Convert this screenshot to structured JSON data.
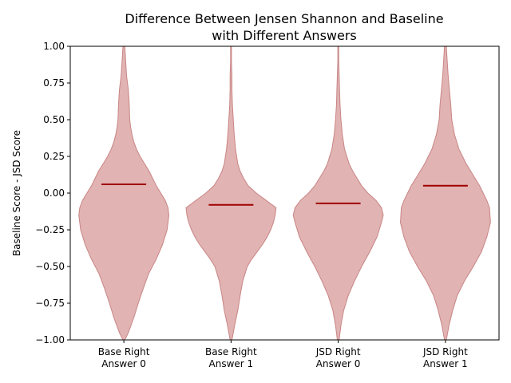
{
  "chart_data": {
    "type": "violin",
    "title_lines": [
      "Difference Between Jensen Shannon and Baseline",
      "with Different Answers"
    ],
    "xlabel": "",
    "ylabel": "Baseline Score - JSD Score",
    "ylim": [
      -1.0,
      1.0
    ],
    "yticks": [
      -1.0,
      -0.75,
      -0.5,
      -0.25,
      0.0,
      0.25,
      0.5,
      0.75,
      1.0
    ],
    "ytick_labels": [
      "−1.00",
      "−0.75",
      "−0.50",
      "−0.25",
      "0.00",
      "0.25",
      "0.50",
      "0.75",
      "1.00"
    ],
    "categories": [
      [
        "Base Right",
        "Answer 0"
      ],
      [
        "Base Right",
        "Answer 1"
      ],
      [
        "JSD Right",
        "Answer 0"
      ],
      [
        "JSD Right",
        "Answer 1"
      ]
    ],
    "means": [
      0.06,
      -0.08,
      -0.07,
      0.05
    ],
    "fill_color": "#d9a0a0",
    "edge_color": "#c98585",
    "mean_color": "#a00000",
    "violins": [
      {
        "profile": [
          [
            -1.0,
            0.02
          ],
          [
            -0.95,
            0.1
          ],
          [
            -0.85,
            0.22
          ],
          [
            -0.75,
            0.32
          ],
          [
            -0.65,
            0.43
          ],
          [
            -0.55,
            0.55
          ],
          [
            -0.45,
            0.72
          ],
          [
            -0.35,
            0.86
          ],
          [
            -0.25,
            0.96
          ],
          [
            -0.15,
            1.0
          ],
          [
            -0.1,
            0.98
          ],
          [
            -0.05,
            0.92
          ],
          [
            0.0,
            0.82
          ],
          [
            0.05,
            0.72
          ],
          [
            0.1,
            0.64
          ],
          [
            0.15,
            0.56
          ],
          [
            0.2,
            0.46
          ],
          [
            0.25,
            0.36
          ],
          [
            0.3,
            0.28
          ],
          [
            0.35,
            0.22
          ],
          [
            0.4,
            0.18
          ],
          [
            0.45,
            0.15
          ],
          [
            0.5,
            0.13
          ],
          [
            0.6,
            0.12
          ],
          [
            0.7,
            0.1
          ],
          [
            0.8,
            0.06
          ],
          [
            0.9,
            0.04
          ],
          [
            1.0,
            0.02
          ]
        ]
      },
      {
        "profile": [
          [
            -1.0,
            0.02
          ],
          [
            -0.9,
            0.08
          ],
          [
            -0.8,
            0.15
          ],
          [
            -0.7,
            0.2
          ],
          [
            -0.6,
            0.26
          ],
          [
            -0.5,
            0.36
          ],
          [
            -0.45,
            0.46
          ],
          [
            -0.4,
            0.58
          ],
          [
            -0.35,
            0.7
          ],
          [
            -0.3,
            0.8
          ],
          [
            -0.25,
            0.88
          ],
          [
            -0.2,
            0.94
          ],
          [
            -0.15,
            0.98
          ],
          [
            -0.1,
            1.0
          ],
          [
            -0.05,
            0.78
          ],
          [
            0.0,
            0.56
          ],
          [
            0.05,
            0.38
          ],
          [
            0.1,
            0.28
          ],
          [
            0.15,
            0.2
          ],
          [
            0.2,
            0.15
          ],
          [
            0.3,
            0.1
          ],
          [
            0.4,
            0.07
          ],
          [
            0.5,
            0.05
          ],
          [
            0.6,
            0.03
          ],
          [
            0.7,
            0.02
          ],
          [
            0.8,
            0.02
          ],
          [
            0.9,
            0.01
          ],
          [
            1.0,
            0.01
          ]
        ]
      },
      {
        "profile": [
          [
            -1.0,
            0.02
          ],
          [
            -0.9,
            0.06
          ],
          [
            -0.8,
            0.12
          ],
          [
            -0.7,
            0.22
          ],
          [
            -0.6,
            0.36
          ],
          [
            -0.5,
            0.52
          ],
          [
            -0.4,
            0.7
          ],
          [
            -0.3,
            0.86
          ],
          [
            -0.2,
            0.96
          ],
          [
            -0.15,
            1.0
          ],
          [
            -0.1,
            0.96
          ],
          [
            -0.05,
            0.84
          ],
          [
            0.0,
            0.66
          ],
          [
            0.05,
            0.52
          ],
          [
            0.1,
            0.42
          ],
          [
            0.15,
            0.32
          ],
          [
            0.2,
            0.24
          ],
          [
            0.3,
            0.14
          ],
          [
            0.4,
            0.09
          ],
          [
            0.5,
            0.06
          ],
          [
            0.6,
            0.04
          ],
          [
            0.7,
            0.03
          ],
          [
            0.8,
            0.02
          ],
          [
            0.9,
            0.01
          ],
          [
            1.0,
            0.01
          ]
        ]
      },
      {
        "profile": [
          [
            -1.0,
            0.02
          ],
          [
            -0.9,
            0.08
          ],
          [
            -0.8,
            0.16
          ],
          [
            -0.7,
            0.26
          ],
          [
            -0.6,
            0.42
          ],
          [
            -0.5,
            0.62
          ],
          [
            -0.4,
            0.8
          ],
          [
            -0.3,
            0.92
          ],
          [
            -0.2,
            1.0
          ],
          [
            -0.1,
            0.98
          ],
          [
            -0.05,
            0.92
          ],
          [
            0.0,
            0.84
          ],
          [
            0.05,
            0.76
          ],
          [
            0.1,
            0.66
          ],
          [
            0.15,
            0.56
          ],
          [
            0.2,
            0.46
          ],
          [
            0.25,
            0.38
          ],
          [
            0.3,
            0.3
          ],
          [
            0.4,
            0.2
          ],
          [
            0.5,
            0.14
          ],
          [
            0.6,
            0.12
          ],
          [
            0.7,
            0.09
          ],
          [
            0.8,
            0.06
          ],
          [
            0.9,
            0.04
          ],
          [
            1.0,
            0.02
          ]
        ]
      }
    ]
  }
}
